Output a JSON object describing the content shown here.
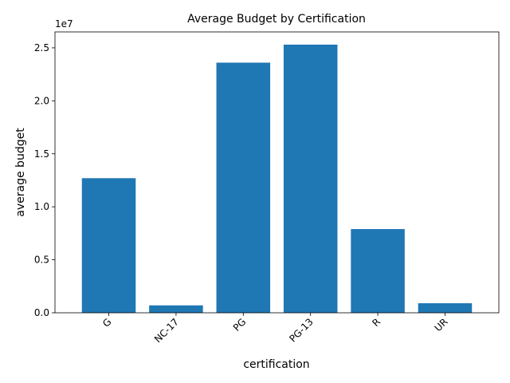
{
  "chart_data": {
    "type": "bar",
    "title": "Average Budget by Certification",
    "xlabel": "certification",
    "ylabel": "average budget",
    "y_offset_label": "1e7",
    "categories": [
      "G",
      "NC-17",
      "PG",
      "PG-13",
      "R",
      "UR"
    ],
    "values": [
      12700000,
      700000,
      23600000,
      25300000,
      7900000,
      900000
    ],
    "ylim": [
      0,
      26500000
    ],
    "yticks": [
      0,
      5000000,
      10000000,
      15000000,
      20000000,
      25000000
    ],
    "ytick_labels": [
      "0.0",
      "0.5",
      "1.0",
      "1.5",
      "2.0",
      "2.5"
    ],
    "xtick_rotation": 45,
    "grid": false,
    "bar_color": "#1f77b4"
  }
}
